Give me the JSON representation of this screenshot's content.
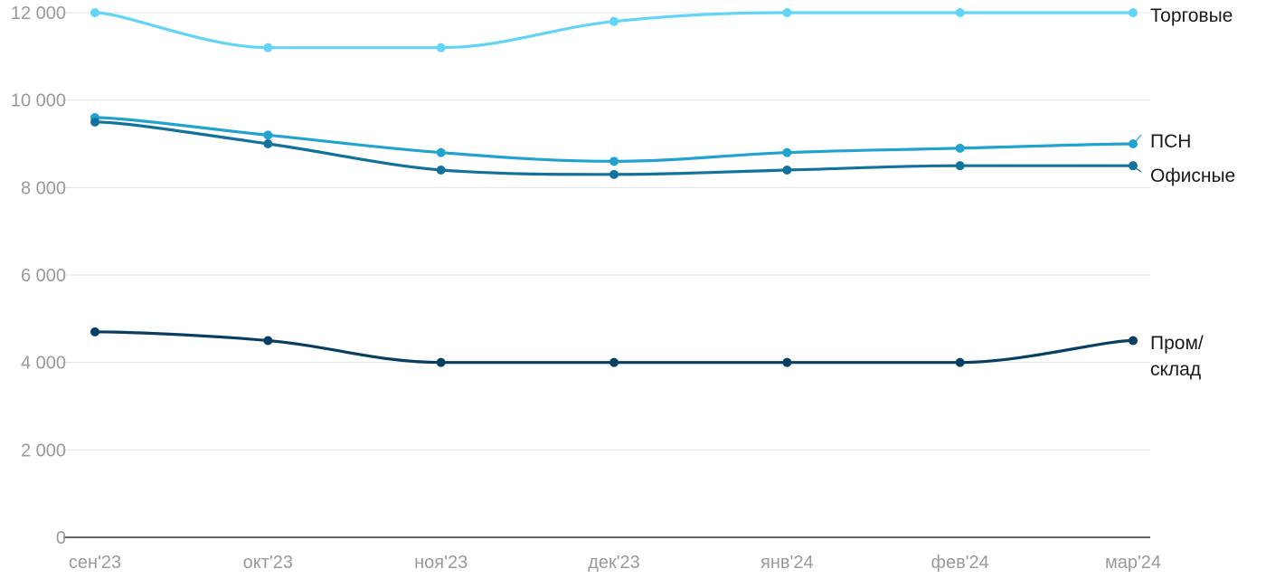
{
  "chart_data": {
    "type": "line",
    "categories": [
      "сен'23",
      "окт'23",
      "ноя'23",
      "дек'23",
      "янв'24",
      "фев'24",
      "мар'24"
    ],
    "ylim": [
      0,
      12000
    ],
    "yticks": [
      0,
      2000,
      4000,
      6000,
      8000,
      10000,
      12000
    ],
    "ytick_labels": [
      "0",
      "2 000",
      "4 000",
      "6 000",
      "8 000",
      "10 000",
      "12 000"
    ],
    "grid": true,
    "legend": "inline-right",
    "series": [
      {
        "name": "Торговые",
        "color": "#62d4f7",
        "values": [
          12000,
          11200,
          11200,
          11800,
          12000,
          12000,
          12000
        ]
      },
      {
        "name": "ПСН",
        "color": "#21a2cf",
        "values": [
          9600,
          9200,
          8800,
          8600,
          8800,
          8900,
          9000
        ]
      },
      {
        "name": "Офисные",
        "color": "#11739c",
        "values": [
          9500,
          9000,
          8400,
          8300,
          8400,
          8500,
          8500
        ]
      },
      {
        "name": "Пром/ склад",
        "label_lines": [
          "Пром/",
          "склад"
        ],
        "color": "#073e61",
        "values": [
          4700,
          4500,
          4000,
          4000,
          4000,
          4000,
          4500
        ]
      }
    ]
  }
}
